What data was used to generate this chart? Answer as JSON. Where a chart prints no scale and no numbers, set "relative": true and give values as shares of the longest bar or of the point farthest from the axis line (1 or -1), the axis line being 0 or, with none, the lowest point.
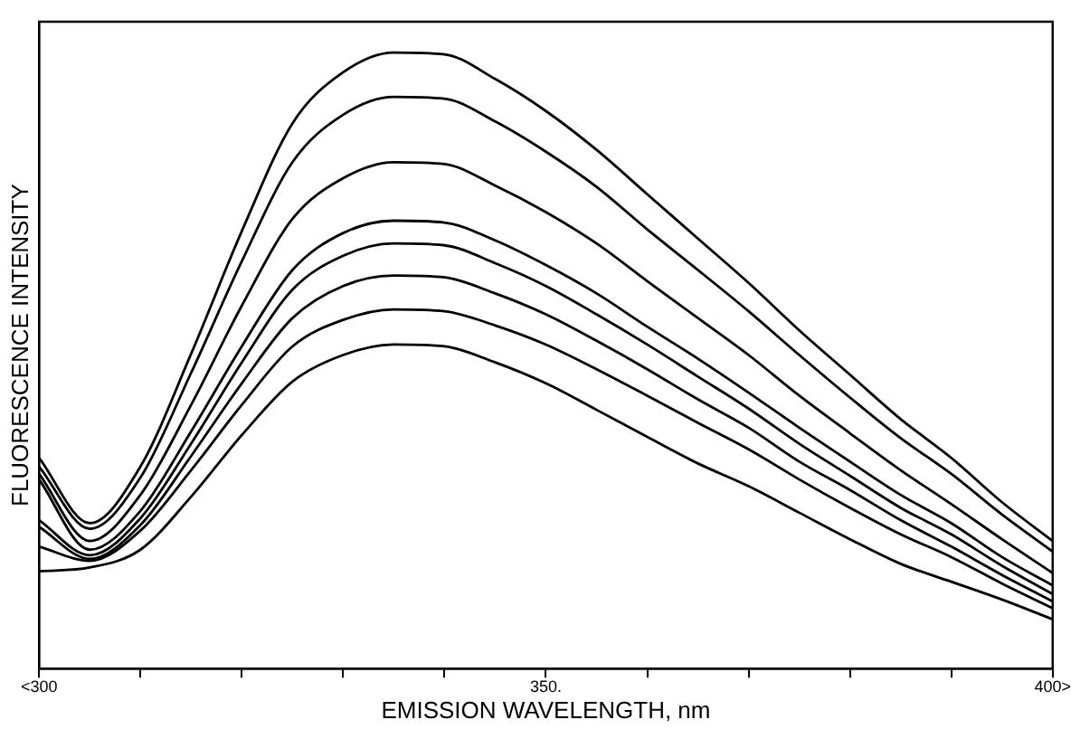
{
  "chart_data": {
    "type": "line",
    "relative": true,
    "xlabel": "EMISSION WAVELENGTH, nm",
    "ylabel": "FLUORESCENCE INTENSITY",
    "categories": [
      "<300",
      null,
      null,
      null,
      null,
      null,
      null,
      null,
      null,
      null,
      "350.",
      null,
      null,
      null,
      null,
      null,
      null,
      null,
      null,
      null,
      "400>"
    ],
    "grid": false,
    "legend": false,
    "marker": "none",
    "line_style": "solid",
    "series": [
      {
        "color": "#000000",
        "values": [
          0.342,
          0.236,
          0.328,
          0.511,
          0.71,
          0.885,
          0.968,
          1,
          0.997,
          0.957,
          0.905,
          0.842,
          0.77,
          0.698,
          0.626,
          0.549,
          0.477,
          0.405,
          0.342,
          0.27,
          0.207
        ]
      },
      {
        "color": "#000000",
        "values": [
          0.328,
          0.227,
          0.31,
          0.48,
          0.661,
          0.822,
          0.899,
          0.928,
          0.925,
          0.888,
          0.839,
          0.782,
          0.713,
          0.647,
          0.58,
          0.509,
          0.44,
          0.374,
          0.316,
          0.25,
          0.19
        ]
      },
      {
        "color": "#000000",
        "values": [
          0.316,
          0.207,
          0.282,
          0.428,
          0.589,
          0.73,
          0.796,
          0.822,
          0.819,
          0.784,
          0.741,
          0.69,
          0.629,
          0.569,
          0.509,
          0.443,
          0.382,
          0.322,
          0.267,
          0.21,
          0.155
        ]
      },
      {
        "color": "#000000",
        "values": [
          0.307,
          0.193,
          0.256,
          0.385,
          0.523,
          0.647,
          0.707,
          0.727,
          0.724,
          0.695,
          0.655,
          0.609,
          0.555,
          0.503,
          0.448,
          0.391,
          0.336,
          0.282,
          0.236,
          0.181,
          0.135
        ]
      },
      {
        "color": "#000000",
        "values": [
          0.241,
          0.184,
          0.244,
          0.365,
          0.497,
          0.615,
          0.67,
          0.69,
          0.687,
          0.658,
          0.621,
          0.575,
          0.526,
          0.474,
          0.422,
          0.365,
          0.313,
          0.261,
          0.218,
          0.167,
          0.121
        ]
      },
      {
        "color": "#000000",
        "values": [
          0.23,
          0.178,
          0.233,
          0.345,
          0.463,
          0.569,
          0.621,
          0.638,
          0.635,
          0.609,
          0.575,
          0.532,
          0.486,
          0.437,
          0.391,
          0.336,
          0.29,
          0.241,
          0.198,
          0.152,
          0.109
        ]
      },
      {
        "color": "#000000",
        "values": [
          0.198,
          0.175,
          0.224,
          0.322,
          0.428,
          0.523,
          0.566,
          0.583,
          0.58,
          0.557,
          0.526,
          0.486,
          0.443,
          0.399,
          0.356,
          0.307,
          0.261,
          0.218,
          0.181,
          0.138,
          0.098
        ]
      },
      {
        "color": "#000000",
        "values": [
          0.158,
          0.164,
          0.193,
          0.279,
          0.379,
          0.466,
          0.509,
          0.526,
          0.523,
          0.497,
          0.463,
          0.42,
          0.376,
          0.333,
          0.296,
          0.253,
          0.21,
          0.17,
          0.141,
          0.112,
          0.08
        ]
      }
    ]
  }
}
